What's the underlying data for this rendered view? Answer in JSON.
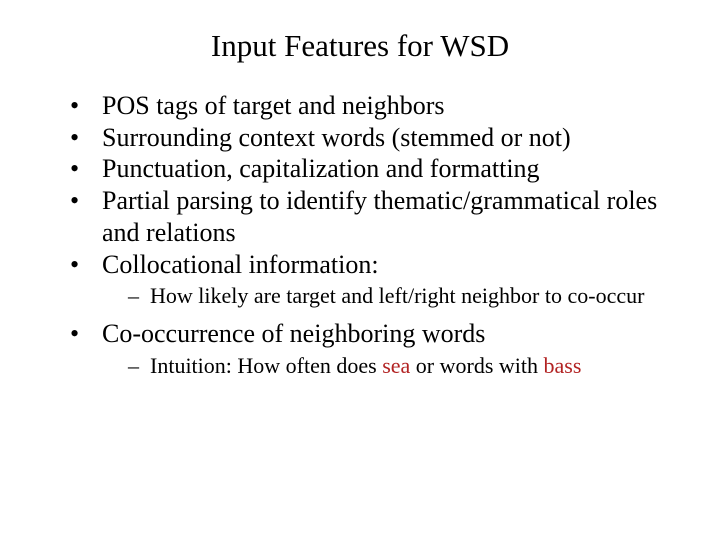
{
  "title": "Input Features for WSD",
  "colors": {
    "text": "#000000",
    "highlight": "#b22222",
    "background": "#ffffff"
  },
  "bullets": {
    "b1": "POS tags of target and neighbors",
    "b2": "Surrounding context words (stemmed or not)",
    "b3": "Punctuation, capitalization and formatting",
    "b4": "Partial parsing to identify thematic/grammatical roles and relations",
    "b5": "Collocational information:",
    "b5_sub1": "How likely are target and left/right neighbor to co-occur",
    "b6": "Co-occurrence of neighboring words",
    "b6_sub1_a": "Intuition:  How often does ",
    "b6_sub1_sea": "sea",
    "b6_sub1_b": " or words with ",
    "b6_sub1_bass": "bass"
  }
}
